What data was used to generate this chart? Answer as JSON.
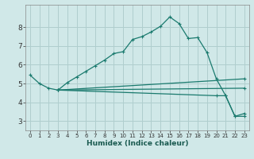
{
  "xlabel": "Humidex (Indice chaleur)",
  "background_color": "#d0e8e8",
  "grid_color": "#b0cece",
  "line_color": "#1a7a6e",
  "xlim": [
    -0.5,
    23.5
  ],
  "ylim": [
    2.5,
    9.2
  ],
  "yticks": [
    3,
    4,
    5,
    6,
    7,
    8
  ],
  "xticks": [
    0,
    1,
    2,
    3,
    4,
    5,
    6,
    7,
    8,
    9,
    10,
    11,
    12,
    13,
    14,
    15,
    16,
    17,
    18,
    19,
    20,
    21,
    22,
    23
  ],
  "series1": [
    [
      0,
      5.45
    ],
    [
      1,
      5.0
    ],
    [
      2,
      4.75
    ],
    [
      3,
      4.65
    ],
    [
      4,
      5.05
    ],
    [
      5,
      5.35
    ],
    [
      6,
      5.65
    ],
    [
      7,
      5.95
    ],
    [
      8,
      6.25
    ],
    [
      9,
      6.6
    ],
    [
      10,
      6.7
    ],
    [
      11,
      7.35
    ],
    [
      12,
      7.5
    ],
    [
      13,
      7.75
    ],
    [
      14,
      8.05
    ],
    [
      15,
      8.55
    ],
    [
      16,
      8.2
    ],
    [
      17,
      7.4
    ],
    [
      18,
      7.45
    ],
    [
      19,
      6.65
    ],
    [
      20,
      5.25
    ],
    [
      21,
      4.35
    ],
    [
      22,
      3.25
    ],
    [
      23,
      3.4
    ]
  ],
  "series2": [
    [
      3,
      4.65
    ],
    [
      23,
      5.25
    ]
  ],
  "series3": [
    [
      3,
      4.65
    ],
    [
      23,
      4.75
    ]
  ],
  "series4": [
    [
      3,
      4.65
    ],
    [
      20,
      4.35
    ],
    [
      21,
      4.35
    ],
    [
      22,
      3.25
    ],
    [
      23,
      3.25
    ]
  ]
}
